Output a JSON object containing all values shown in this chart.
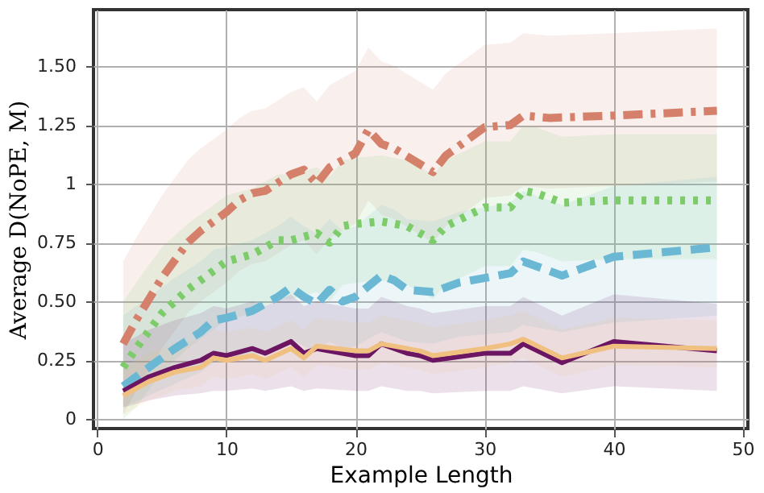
{
  "chart_data": {
    "type": "line",
    "xlabel": "Example Length",
    "ylabel": "Average D(NoPE, M)",
    "xlim": [
      -0.3,
      50.4
    ],
    "xticks": [
      0,
      10,
      20,
      30,
      40,
      50
    ],
    "ylim": [
      -0.04,
      1.74
    ],
    "yticks": [
      0,
      0.25,
      {
        "value": 0.5,
        "label": "0.50"
      },
      0.75,
      1,
      1.25,
      {
        "value": 1.5,
        "label": "1.50"
      }
    ],
    "grid": true,
    "marker": "none",
    "series": [
      {
        "color": "#d4806a",
        "line_style": "dashdot",
        "x": [
          2,
          3,
          5,
          7,
          8,
          10,
          11,
          12,
          13,
          15,
          16,
          17,
          18,
          20,
          21,
          22,
          23,
          26,
          27,
          30,
          32,
          33,
          35,
          40,
          48
        ],
        "values": [
          0.32,
          0.42,
          0.6,
          0.75,
          0.8,
          0.88,
          0.93,
          0.96,
          0.97,
          1.04,
          1.06,
          1.0,
          1.07,
          1.13,
          1.23,
          1.17,
          1.15,
          1.05,
          1.12,
          1.24,
          1.25,
          1.29,
          1.28,
          1.29,
          1.31
        ],
        "upper": [
          0.67,
          0.77,
          0.95,
          1.1,
          1.15,
          1.23,
          1.28,
          1.31,
          1.32,
          1.39,
          1.41,
          1.35,
          1.42,
          1.48,
          1.58,
          1.52,
          1.5,
          1.4,
          1.47,
          1.59,
          1.6,
          1.64,
          1.63,
          1.64,
          1.66
        ],
        "lower": [
          0.02,
          0.12,
          0.3,
          0.45,
          0.5,
          0.58,
          0.63,
          0.66,
          0.67,
          0.74,
          0.76,
          0.7,
          0.77,
          0.83,
          0.93,
          0.87,
          0.85,
          0.75,
          0.82,
          0.94,
          0.95,
          0.99,
          0.98,
          0.99,
          1.01
        ]
      },
      {
        "color": "#7ccc6a",
        "line_style": "dotted",
        "x": [
          2,
          3,
          5,
          7,
          9,
          10,
          12,
          13,
          14,
          15,
          17,
          18,
          19,
          20,
          22,
          24,
          26,
          27,
          30,
          32,
          33,
          34,
          36,
          40,
          48
        ],
        "values": [
          0.22,
          0.3,
          0.45,
          0.55,
          0.63,
          0.67,
          0.7,
          0.73,
          0.76,
          0.76,
          0.79,
          0.75,
          0.82,
          0.83,
          0.84,
          0.82,
          0.76,
          0.82,
          0.9,
          0.9,
          0.97,
          0.96,
          0.92,
          0.93,
          0.93
        ],
        "upper": [
          0.5,
          0.58,
          0.73,
          0.83,
          0.91,
          0.95,
          0.98,
          1.01,
          1.04,
          1.04,
          1.07,
          1.03,
          1.1,
          1.11,
          1.12,
          1.1,
          1.04,
          1.1,
          1.18,
          1.18,
          1.25,
          1.24,
          1.2,
          1.21,
          1.21
        ],
        "lower": [
          0.0,
          0.05,
          0.2,
          0.3,
          0.38,
          0.42,
          0.45,
          0.48,
          0.51,
          0.51,
          0.54,
          0.5,
          0.57,
          0.58,
          0.59,
          0.57,
          0.51,
          0.57,
          0.65,
          0.65,
          0.72,
          0.71,
          0.67,
          0.68,
          0.68
        ]
      },
      {
        "color": "#6bb8d4",
        "line_style": "dashed",
        "x": [
          2,
          4,
          6,
          8,
          9,
          10,
          12,
          14,
          15,
          16,
          17,
          18,
          19,
          20,
          22,
          23,
          24,
          26,
          28,
          32,
          33,
          36,
          40,
          48
        ],
        "values": [
          0.14,
          0.22,
          0.3,
          0.37,
          0.42,
          0.43,
          0.46,
          0.52,
          0.56,
          0.52,
          0.49,
          0.55,
          0.5,
          0.52,
          0.61,
          0.59,
          0.55,
          0.54,
          0.58,
          0.62,
          0.67,
          0.61,
          0.69,
          0.73
        ],
        "upper": [
          0.44,
          0.52,
          0.6,
          0.67,
          0.72,
          0.73,
          0.76,
          0.82,
          0.86,
          0.82,
          0.79,
          0.85,
          0.8,
          0.82,
          0.91,
          0.89,
          0.85,
          0.84,
          0.88,
          0.92,
          0.97,
          0.91,
          0.99,
          1.03
        ],
        "lower": [
          0.05,
          0.1,
          0.15,
          0.2,
          0.24,
          0.25,
          0.27,
          0.31,
          0.34,
          0.31,
          0.29,
          0.33,
          0.3,
          0.31,
          0.37,
          0.35,
          0.33,
          0.32,
          0.35,
          0.37,
          0.4,
          0.37,
          0.41,
          0.44
        ]
      },
      {
        "color": "#6b1563",
        "line_style": "solid",
        "x": [
          2,
          4,
          6,
          8,
          9,
          10,
          12,
          13,
          15,
          16,
          17,
          20,
          21,
          22,
          24,
          25,
          26,
          30,
          32,
          33,
          36,
          40,
          48
        ],
        "values": [
          0.12,
          0.18,
          0.22,
          0.25,
          0.28,
          0.27,
          0.3,
          0.28,
          0.33,
          0.28,
          0.3,
          0.27,
          0.27,
          0.32,
          0.28,
          0.27,
          0.25,
          0.28,
          0.28,
          0.32,
          0.24,
          0.33,
          0.29
        ],
        "upper": [
          0.32,
          0.38,
          0.42,
          0.45,
          0.48,
          0.47,
          0.5,
          0.48,
          0.53,
          0.48,
          0.5,
          0.47,
          0.47,
          0.52,
          0.48,
          0.47,
          0.45,
          0.48,
          0.48,
          0.52,
          0.44,
          0.53,
          0.49
        ],
        "lower": [
          0.05,
          0.08,
          0.1,
          0.11,
          0.12,
          0.12,
          0.13,
          0.12,
          0.14,
          0.12,
          0.13,
          0.12,
          0.12,
          0.14,
          0.12,
          0.12,
          0.11,
          0.12,
          0.12,
          0.14,
          0.11,
          0.14,
          0.12
        ]
      },
      {
        "color": "#f0c080",
        "line_style": "solid",
        "x": [
          2,
          4,
          6,
          8,
          9,
          10,
          12,
          13,
          15,
          16,
          17,
          20,
          21,
          22,
          25,
          26,
          30,
          32,
          33,
          36,
          40,
          48
        ],
        "values": [
          0.1,
          0.16,
          0.2,
          0.22,
          0.26,
          0.25,
          0.27,
          0.25,
          0.3,
          0.26,
          0.31,
          0.29,
          0.29,
          0.32,
          0.29,
          0.27,
          0.3,
          0.32,
          0.34,
          0.26,
          0.31,
          0.3
        ],
        "upper": [
          0.22,
          0.28,
          0.32,
          0.34,
          0.38,
          0.37,
          0.39,
          0.37,
          0.42,
          0.38,
          0.43,
          0.41,
          0.41,
          0.44,
          0.41,
          0.39,
          0.42,
          0.44,
          0.46,
          0.38,
          0.43,
          0.42
        ],
        "lower": [
          0.02,
          0.08,
          0.12,
          0.14,
          0.18,
          0.17,
          0.19,
          0.17,
          0.22,
          0.18,
          0.23,
          0.21,
          0.21,
          0.24,
          0.21,
          0.19,
          0.22,
          0.24,
          0.26,
          0.18,
          0.23,
          0.22
        ]
      }
    ]
  }
}
